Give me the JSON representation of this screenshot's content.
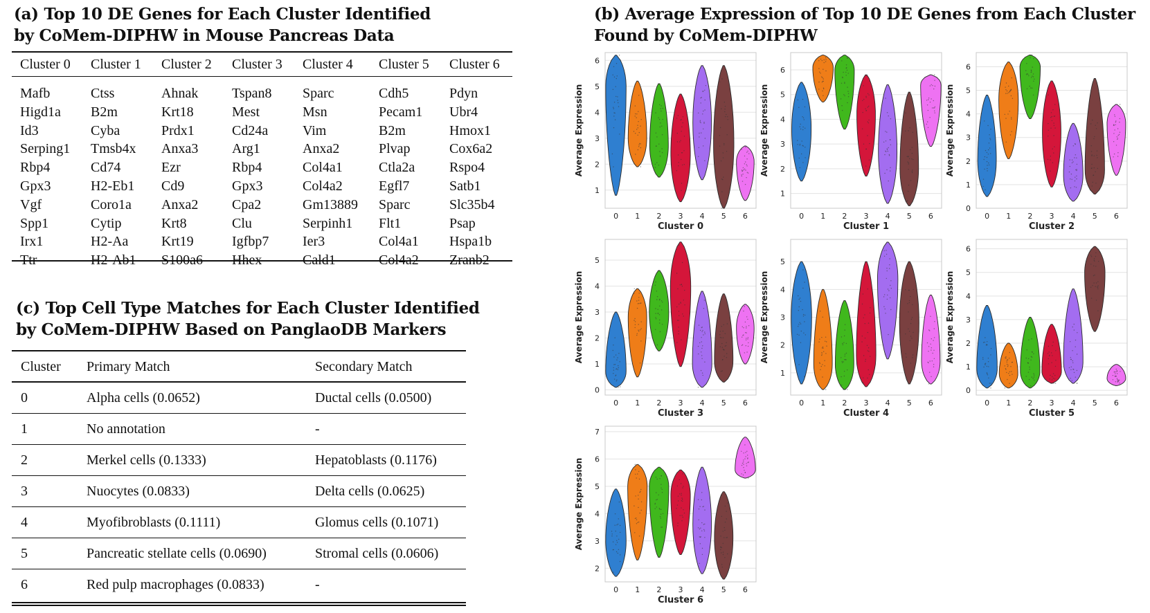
{
  "section_a": {
    "title_line1": "(a) Top 10 DE Genes for Each Cluster Identified",
    "title_line2": "by CoMem-DIPHW in Mouse Pancreas Data",
    "columns": [
      {
        "header": "Cluster 0",
        "genes": [
          "Mafb",
          "Higd1a",
          "Id3",
          "Serping1",
          "Rbp4",
          "Gpx3",
          "Vgf",
          "Spp1",
          "Irx1",
          "Ttr"
        ]
      },
      {
        "header": "Cluster 1",
        "genes": [
          "Ctss",
          "B2m",
          "Cyba",
          "Tmsb4x",
          "Cd74",
          "H2-Eb1",
          "Coro1a",
          "Cytip",
          "H2-Aa",
          "H2-Ab1"
        ]
      },
      {
        "header": "Cluster 2",
        "genes": [
          "Ahnak",
          "Krt18",
          "Prdx1",
          "Anxa3",
          "Ezr",
          "Cd9",
          "Anxa2",
          "Krt8",
          "Krt19",
          "S100a6"
        ]
      },
      {
        "header": "Cluster 3",
        "genes": [
          "Tspan8",
          "Mest",
          "Cd24a",
          "Arg1",
          "Rbp4",
          "Gpx3",
          "Cpa2",
          "Clu",
          "Igfbp7",
          "Hhex"
        ]
      },
      {
        "header": "Cluster 4",
        "genes": [
          "Sparc",
          "Msn",
          "Vim",
          "Anxa2",
          "Col4a1",
          "Col4a2",
          "Gm13889",
          "Serpinh1",
          "Ier3",
          "Cald1"
        ]
      },
      {
        "header": "Cluster 5",
        "genes": [
          "Cdh5",
          "Pecam1",
          "B2m",
          "Plvap",
          "Ctla2a",
          "Egfl7",
          "Sparc",
          "Flt1",
          "Col4a1",
          "Col4a2"
        ]
      },
      {
        "header": "Cluster 6",
        "genes": [
          "Pdyn",
          "Ubr4",
          "Hmox1",
          "Cox6a2",
          "Rspo4",
          "Satb1",
          "Slc35b4",
          "Psap",
          "Hspa1b",
          "Zranb2"
        ]
      }
    ]
  },
  "section_c": {
    "title_line1": "(c) Top Cell Type Matches for Each Cluster Identified",
    "title_line2": "by CoMem-DIPHW Based on PanglaoDB Markers",
    "headers": {
      "cluster": "Cluster",
      "primary": "Primary Match",
      "secondary": "Secondary Match"
    },
    "rows": [
      {
        "cluster": "0",
        "primary": "Alpha cells (0.0652)",
        "secondary": "Ductal cells (0.0500)"
      },
      {
        "cluster": "1",
        "primary": "No annotation",
        "secondary": "-"
      },
      {
        "cluster": "2",
        "primary": "Merkel cells (0.1333)",
        "secondary": "Hepatoblasts (0.1176)"
      },
      {
        "cluster": "3",
        "primary": "Nuocytes (0.0833)",
        "secondary": "Delta cells (0.0625)"
      },
      {
        "cluster": "4",
        "primary": "Myofibroblasts (0.1111)",
        "secondary": "Glomus cells (0.1071)"
      },
      {
        "cluster": "5",
        "primary": "Pancreatic stellate cells (0.0690)",
        "secondary": "Stromal cells (0.0606)"
      },
      {
        "cluster": "6",
        "primary": "Red pulp macrophages (0.0833)",
        "secondary": "-"
      }
    ]
  },
  "section_b": {
    "title_line1": "(b) Average Expression of Top 10 DE Genes from Each Cluster",
    "title_line2": "Found by CoMem-DIPHW"
  },
  "chart_data": {
    "type": "violin",
    "ylabel": "Average Expression",
    "groups": [
      "0",
      "1",
      "2",
      "3",
      "4",
      "5",
      "6"
    ],
    "colors": [
      "#2f7fd0",
      "#ef7d18",
      "#40b81d",
      "#d4163a",
      "#a36df0",
      "#7a4040",
      "#ee72f2"
    ],
    "panels": [
      {
        "title": "Cluster 0",
        "yticks": [
          1,
          2,
          3,
          4,
          5,
          6
        ],
        "ylim": [
          0.3,
          6.3
        ],
        "violins": [
          {
            "min": 0.8,
            "max": 6.2,
            "peak": 5.0,
            "max_width": 0.42
          },
          {
            "min": 1.9,
            "max": 5.2,
            "peak": 3.0,
            "max_width": 0.38
          },
          {
            "min": 1.5,
            "max": 5.1,
            "peak": 2.7,
            "max_width": 0.38
          },
          {
            "min": 0.55,
            "max": 4.7,
            "peak": 2.4,
            "max_width": 0.4
          },
          {
            "min": 1.4,
            "max": 5.8,
            "peak": 3.6,
            "max_width": 0.38
          },
          {
            "min": 0.3,
            "max": 5.8,
            "peak": 2.8,
            "max_width": 0.42
          },
          {
            "min": 0.6,
            "max": 2.7,
            "peak": 2.1,
            "max_width": 0.36
          }
        ]
      },
      {
        "title": "Cluster 1",
        "yticks": [
          1,
          2,
          3,
          4,
          5,
          6
        ],
        "ylim": [
          0.4,
          6.7
        ],
        "violins": [
          {
            "min": 1.5,
            "max": 5.5,
            "peak": 3.6,
            "max_width": 0.4
          },
          {
            "min": 4.7,
            "max": 6.6,
            "peak": 6.1,
            "max_width": 0.42
          },
          {
            "min": 3.6,
            "max": 6.6,
            "peak": 6.0,
            "max_width": 0.4
          },
          {
            "min": 1.7,
            "max": 5.8,
            "peak": 4.2,
            "max_width": 0.38
          },
          {
            "min": 0.6,
            "max": 5.4,
            "peak": 2.7,
            "max_width": 0.38
          },
          {
            "min": 0.5,
            "max": 5.1,
            "peak": 2.0,
            "max_width": 0.38
          },
          {
            "min": 2.9,
            "max": 5.8,
            "peak": 5.4,
            "max_width": 0.42
          }
        ]
      },
      {
        "title": "Cluster 2",
        "yticks": [
          0,
          1,
          2,
          3,
          4,
          5,
          6
        ],
        "ylim": [
          0,
          6.6
        ],
        "violins": [
          {
            "min": 0.5,
            "max": 4.8,
            "peak": 2.0,
            "max_width": 0.38
          },
          {
            "min": 2.1,
            "max": 6.2,
            "peak": 4.6,
            "max_width": 0.4
          },
          {
            "min": 3.8,
            "max": 6.5,
            "peak": 6.0,
            "max_width": 0.42
          },
          {
            "min": 0.9,
            "max": 5.4,
            "peak": 3.2,
            "max_width": 0.38
          },
          {
            "min": 0.3,
            "max": 3.6,
            "peak": 1.4,
            "max_width": 0.4
          },
          {
            "min": 0.6,
            "max": 5.5,
            "peak": 1.6,
            "max_width": 0.4
          },
          {
            "min": 1.4,
            "max": 4.4,
            "peak": 3.6,
            "max_width": 0.38
          }
        ]
      },
      {
        "title": "Cluster 3",
        "yticks": [
          0,
          1,
          2,
          3,
          4,
          5
        ],
        "ylim": [
          -0.2,
          5.8
        ],
        "violins": [
          {
            "min": 0.1,
            "max": 3.0,
            "peak": 0.7,
            "max_width": 0.42
          },
          {
            "min": 0.5,
            "max": 3.9,
            "peak": 2.8,
            "max_width": 0.38
          },
          {
            "min": 1.5,
            "max": 4.6,
            "peak": 3.0,
            "max_width": 0.4
          },
          {
            "min": 0.9,
            "max": 5.7,
            "peak": 4.0,
            "max_width": 0.42
          },
          {
            "min": 0.1,
            "max": 3.8,
            "peak": 1.0,
            "max_width": 0.4
          },
          {
            "min": 0.3,
            "max": 3.7,
            "peak": 1.1,
            "max_width": 0.38
          },
          {
            "min": 1.0,
            "max": 3.3,
            "peak": 2.4,
            "max_width": 0.36
          }
        ]
      },
      {
        "title": "Cluster 4",
        "yticks": [
          1,
          2,
          3,
          4,
          5
        ],
        "ylim": [
          0.2,
          5.8
        ],
        "violins": [
          {
            "min": 0.6,
            "max": 5.0,
            "peak": 3.0,
            "max_width": 0.42
          },
          {
            "min": 0.4,
            "max": 4.0,
            "peak": 1.3,
            "max_width": 0.38
          },
          {
            "min": 0.4,
            "max": 3.6,
            "peak": 1.3,
            "max_width": 0.38
          },
          {
            "min": 0.5,
            "max": 5.0,
            "peak": 1.6,
            "max_width": 0.4
          },
          {
            "min": 1.5,
            "max": 5.7,
            "peak": 4.4,
            "max_width": 0.42
          },
          {
            "min": 0.6,
            "max": 5.0,
            "peak": 2.8,
            "max_width": 0.4
          },
          {
            "min": 0.6,
            "max": 3.8,
            "peak": 1.4,
            "max_width": 0.38
          }
        ]
      },
      {
        "title": "Cluster 5",
        "yticks": [
          0,
          1,
          2,
          3,
          4,
          5,
          6
        ],
        "ylim": [
          -0.2,
          6.4
        ],
        "violins": [
          {
            "min": 0.1,
            "max": 3.6,
            "peak": 0.9,
            "max_width": 0.42
          },
          {
            "min": 0.1,
            "max": 2.0,
            "peak": 0.7,
            "max_width": 0.38
          },
          {
            "min": 0.1,
            "max": 3.1,
            "peak": 0.8,
            "max_width": 0.4
          },
          {
            "min": 0.3,
            "max": 2.8,
            "peak": 0.8,
            "max_width": 0.4
          },
          {
            "min": 0.3,
            "max": 4.3,
            "peak": 1.2,
            "max_width": 0.4
          },
          {
            "min": 2.5,
            "max": 6.1,
            "peak": 5.0,
            "max_width": 0.42
          },
          {
            "min": 0.2,
            "max": 1.1,
            "peak": 0.5,
            "max_width": 0.38
          }
        ]
      },
      {
        "title": "Cluster 6",
        "yticks": [
          2,
          3,
          4,
          5,
          6,
          7
        ],
        "ylim": [
          1.5,
          7.2
        ],
        "violins": [
          {
            "min": 1.7,
            "max": 4.9,
            "peak": 3.0,
            "max_width": 0.42
          },
          {
            "min": 2.3,
            "max": 5.8,
            "peak": 5.0,
            "max_width": 0.4
          },
          {
            "min": 2.4,
            "max": 5.7,
            "peak": 5.0,
            "max_width": 0.4
          },
          {
            "min": 2.5,
            "max": 5.6,
            "peak": 4.7,
            "max_width": 0.4
          },
          {
            "min": 1.8,
            "max": 5.7,
            "peak": 3.6,
            "max_width": 0.38
          },
          {
            "min": 1.6,
            "max": 4.8,
            "peak": 3.1,
            "max_width": 0.38
          },
          {
            "min": 5.3,
            "max": 6.8,
            "peak": 5.6,
            "max_width": 0.42
          }
        ]
      }
    ]
  }
}
